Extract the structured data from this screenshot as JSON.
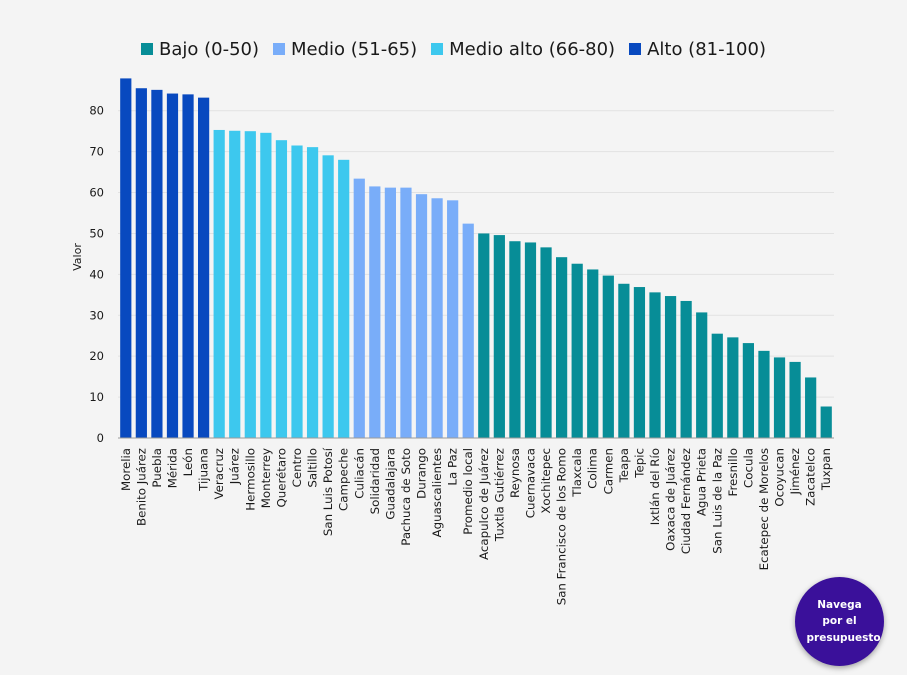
{
  "legend": [
    {
      "label": "Bajo (0-50)",
      "color": "#078d97"
    },
    {
      "label": "Medio (51-65)",
      "color": "#79adf9"
    },
    {
      "label": "Medio alto (66-80)",
      "color": "#3dc8ee"
    },
    {
      "label": "Alto (81-100)",
      "color": "#0849bf"
    }
  ],
  "nav_button": {
    "label": "Navega por el presupuesto"
  },
  "chart_data": {
    "type": "bar",
    "title": "",
    "xlabel": "",
    "ylabel": "Valor",
    "ylim": [
      0,
      88
    ],
    "yticks": [
      0,
      10,
      20,
      30,
      40,
      50,
      60,
      70,
      80
    ],
    "grid": true,
    "legend_position": "top-center",
    "categories": [
      "Morelia",
      "Benito Juárez",
      "Puebla",
      "Mérida",
      "León",
      "Tijuana",
      "Veracruz",
      "Juárez",
      "Hermosillo",
      "Monterrey",
      "Querétaro",
      "Centro",
      "Saltillo",
      "San Luis Potosí",
      "Campeche",
      "Culiacán",
      "Solidaridad",
      "Guadalajara",
      "Pachuca de Soto",
      "Durango",
      "Aguascalientes",
      "La Paz",
      "Promedio local",
      "Acapulco de Juárez",
      "Tuxtla Gutiérrez",
      "Reynosa",
      "Cuernavaca",
      "Xochitepec",
      "San Francisco de los Romo",
      "Tlaxcala",
      "Colima",
      "Carmen",
      "Teapa",
      "Tepic",
      "Ixtlán del Río",
      "Oaxaca de Juárez",
      "Ciudad Fernández",
      "Agua Prieta",
      "San Luis de la Paz",
      "Fresnillo",
      "Cocula",
      "Ecatepec de Morelos",
      "Ocoyucan",
      "Jiménez",
      "Zacatelco",
      "Tuxpan"
    ],
    "values": [
      87.9,
      85.5,
      85.1,
      84.2,
      84.0,
      83.2,
      75.3,
      75.1,
      75.0,
      74.6,
      72.8,
      71.5,
      71.1,
      69.1,
      68.0,
      63.4,
      61.5,
      61.2,
      61.2,
      59.6,
      58.6,
      58.1,
      52.4,
      50.0,
      49.6,
      48.1,
      47.8,
      46.6,
      44.2,
      42.6,
      41.2,
      39.7,
      37.7,
      36.9,
      35.6,
      34.7,
      33.5,
      30.7,
      25.5,
      24.6,
      23.2,
      21.3,
      19.7,
      18.6,
      14.8,
      7.7
    ],
    "value_colors": [
      "#0849bf",
      "#0849bf",
      "#0849bf",
      "#0849bf",
      "#0849bf",
      "#0849bf",
      "#3dc8ee",
      "#3dc8ee",
      "#3dc8ee",
      "#3dc8ee",
      "#3dc8ee",
      "#3dc8ee",
      "#3dc8ee",
      "#3dc8ee",
      "#3dc8ee",
      "#79adf9",
      "#79adf9",
      "#79adf9",
      "#79adf9",
      "#79adf9",
      "#79adf9",
      "#79adf9",
      "#79adf9",
      "#078d97",
      "#078d97",
      "#078d97",
      "#078d97",
      "#078d97",
      "#078d97",
      "#078d97",
      "#078d97",
      "#078d97",
      "#078d97",
      "#078d97",
      "#078d97",
      "#078d97",
      "#078d97",
      "#078d97",
      "#078d97",
      "#078d97",
      "#078d97",
      "#078d97",
      "#078d97",
      "#078d97",
      "#078d97",
      "#078d97"
    ]
  }
}
